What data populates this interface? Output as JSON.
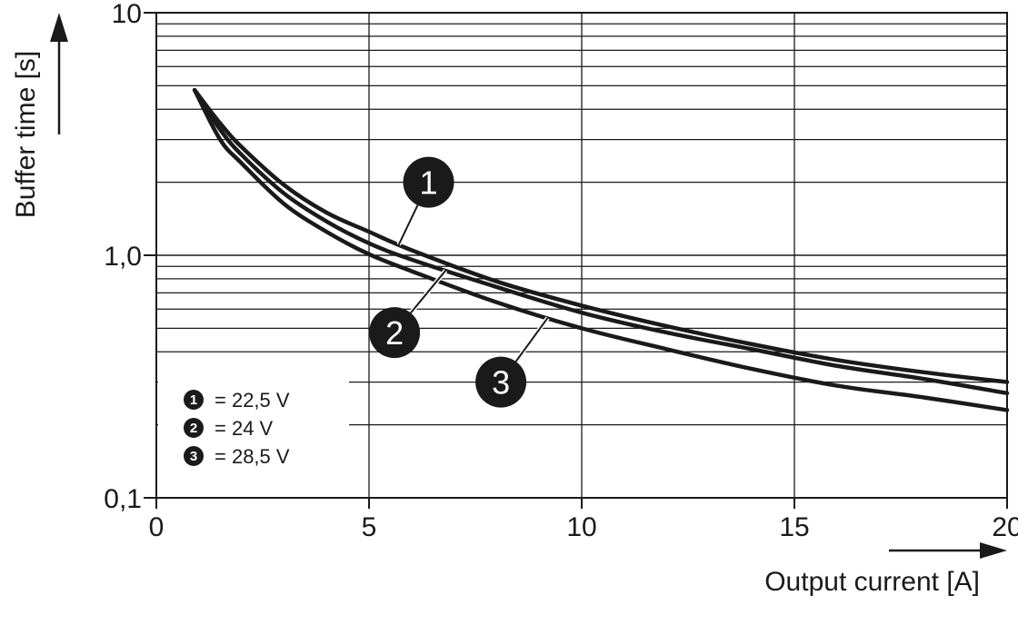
{
  "chart_data": {
    "type": "line",
    "xlabel": "Output current [A]",
    "ylabel": "Buffer time [s]",
    "xlim": [
      0,
      20
    ],
    "ylim": [
      0.1,
      10
    ],
    "yscale": "log",
    "x_ticks": [
      0,
      5,
      10,
      15,
      20
    ],
    "x_tick_labels": [
      "0",
      "5",
      "10",
      "15",
      "20"
    ],
    "y_ticks": [
      0.1,
      1,
      10
    ],
    "y_tick_labels": [
      "0,1",
      "1,0",
      "10"
    ],
    "grid": true,
    "legend_position": "lower-left",
    "series": [
      {
        "name": "22,5 V",
        "marker": "1",
        "x": [
          0.9,
          1.5,
          2,
          3,
          4,
          5,
          6,
          8,
          10,
          12,
          14,
          16,
          18,
          20
        ],
        "y": [
          4.8,
          3.5,
          2.8,
          1.95,
          1.5,
          1.25,
          1.05,
          0.78,
          0.62,
          0.51,
          0.43,
          0.37,
          0.33,
          0.3
        ]
      },
      {
        "name": "24 V",
        "marker": "2",
        "x": [
          0.9,
          1.5,
          2,
          3,
          4,
          5,
          6,
          8,
          10,
          12,
          14,
          16,
          18,
          20
        ],
        "y": [
          4.8,
          3.3,
          2.6,
          1.8,
          1.38,
          1.12,
          0.96,
          0.74,
          0.58,
          0.48,
          0.41,
          0.35,
          0.31,
          0.27
        ]
      },
      {
        "name": "28,5 V",
        "marker": "3",
        "x": [
          0.9,
          1.5,
          2,
          3,
          4,
          5,
          6,
          8,
          10,
          12,
          14,
          16,
          18,
          20
        ],
        "y": [
          4.8,
          3.0,
          2.4,
          1.63,
          1.25,
          1.01,
          0.86,
          0.64,
          0.5,
          0.41,
          0.34,
          0.29,
          0.26,
          0.23
        ]
      }
    ],
    "legend": [
      {
        "marker": "1",
        "text": "= 22,5 V"
      },
      {
        "marker": "2",
        "text": "= 24 V"
      },
      {
        "marker": "3",
        "text": "= 28,5 V"
      }
    ],
    "annotations": [
      {
        "label": "1",
        "series": 0,
        "at_x": 5.7,
        "bubble_x": 6.4,
        "bubble_y": 2.0
      },
      {
        "label": "2",
        "series": 1,
        "at_x": 6.8,
        "bubble_x": 5.6,
        "bubble_y": 0.48
      },
      {
        "label": "3",
        "series": 2,
        "at_x": 9.2,
        "bubble_x": 8.1,
        "bubble_y": 0.3
      }
    ],
    "colors": {
      "line": "#1a1a1a",
      "grid": "#1a1a1a",
      "background": "#ffffff"
    }
  }
}
